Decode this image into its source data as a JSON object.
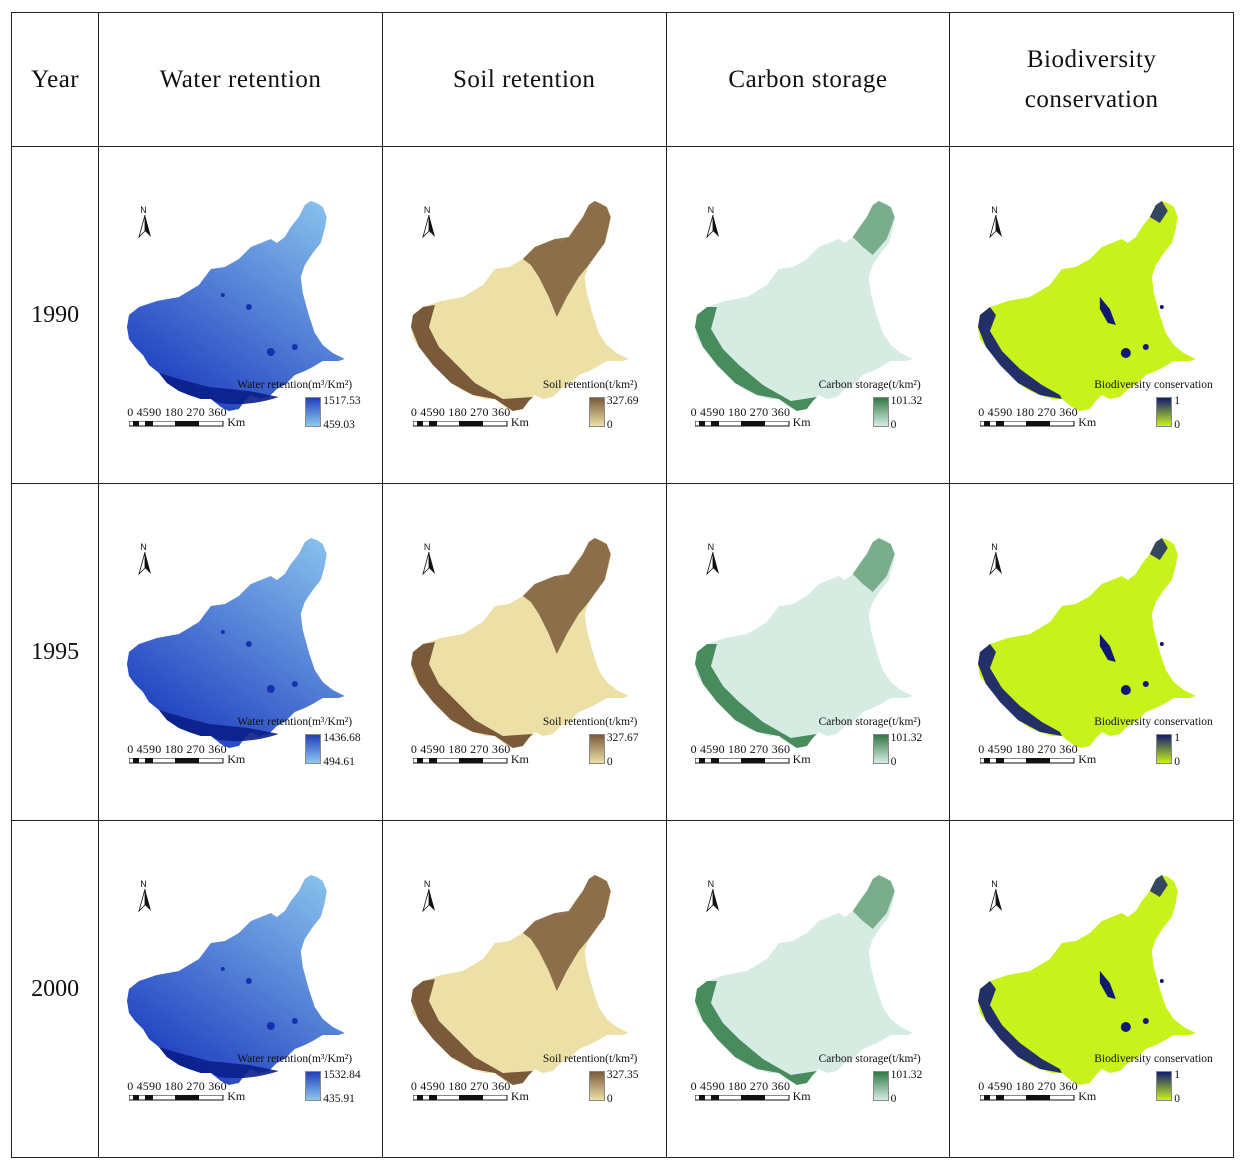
{
  "headers": {
    "year": "Year",
    "water": "Water retention",
    "soil": "Soil retention",
    "carbon": "Carbon storage",
    "bio_line1": "Biodiversity",
    "bio_line2": "conservation"
  },
  "scale": {
    "numbers": "0 4590   180  270  360",
    "unit": "Km"
  },
  "north_label": "N",
  "legends": {
    "water": {
      "title": "Water retention(m³/Km²)"
    },
    "soil": {
      "title": "Soil retention(t/km²)"
    },
    "carbon": {
      "title": "Carbon storage(t/km²)"
    },
    "bio": {
      "title": "Biodiversity conservation"
    }
  },
  "colors": {
    "water": {
      "high": "#1f3fc0",
      "low": "#8ec8ef"
    },
    "soil": {
      "high": "#7a5a3a",
      "low": "#ede0a6"
    },
    "carbon": {
      "high": "#2f7a45",
      "low": "#d6ece2"
    },
    "bio": {
      "high": "#101b70",
      "low": "#c8f21c"
    }
  },
  "rows": [
    {
      "year": "1990",
      "water": {
        "max": "1517.53",
        "min": "459.03"
      },
      "soil": {
        "max": "327.69",
        "min": "0"
      },
      "carbon": {
        "max": "101.32",
        "min": "0"
      },
      "bio": {
        "max": "1",
        "min": "0"
      }
    },
    {
      "year": "1995",
      "water": {
        "max": "1436.68",
        "min": "494.61"
      },
      "soil": {
        "max": "327.67",
        "min": "0"
      },
      "carbon": {
        "max": "101.32",
        "min": "0"
      },
      "bio": {
        "max": "1",
        "min": "0"
      }
    },
    {
      "year": "2000",
      "water": {
        "max": "1532.84",
        "min": "435.91"
      },
      "soil": {
        "max": "327.35",
        "min": "0"
      },
      "carbon": {
        "max": "101.32",
        "min": "0"
      },
      "bio": {
        "max": "1",
        "min": "0"
      }
    }
  ]
}
